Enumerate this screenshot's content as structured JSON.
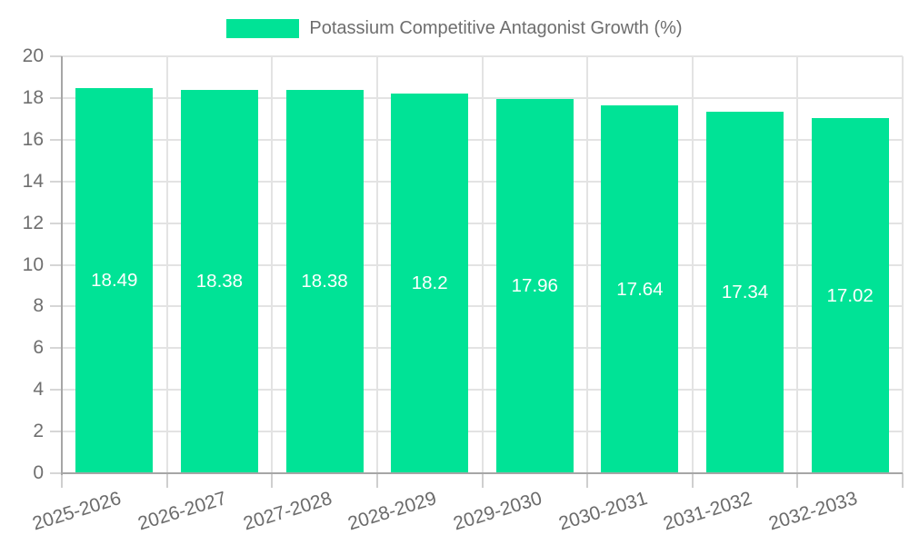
{
  "legend": {
    "label": "Potassium Competitive Antagonist Growth (%)"
  },
  "colors": {
    "bar": "#00E396",
    "grid": "#e3e3e3",
    "axis": "#a6a6a6",
    "tick": "#d0d0d0",
    "axis_label": "#6b6b6b",
    "value_label": "#ffffff",
    "background": "#ffffff"
  },
  "chart_data": {
    "type": "bar",
    "title": "",
    "xlabel": "",
    "ylabel": "",
    "legend_position": "top",
    "grid": true,
    "ylim": [
      0,
      20
    ],
    "ytick_step": 2,
    "yticks": [
      "0",
      "2",
      "4",
      "6",
      "8",
      "10",
      "12",
      "14",
      "16",
      "18",
      "20"
    ],
    "categories": [
      "2025-2026",
      "2026-2027",
      "2027-2028",
      "2028-2029",
      "2029-2030",
      "2030-2031",
      "2031-2032",
      "2032-2033"
    ],
    "series": [
      {
        "name": "Potassium Competitive Antagonist Growth (%)",
        "values": [
          18.49,
          18.38,
          18.38,
          18.2,
          17.96,
          17.64,
          17.34,
          17.02
        ]
      }
    ],
    "value_labels": [
      "18.49",
      "18.38",
      "18.38",
      "18.2",
      "17.96",
      "17.64",
      "17.34",
      "17.02"
    ]
  }
}
